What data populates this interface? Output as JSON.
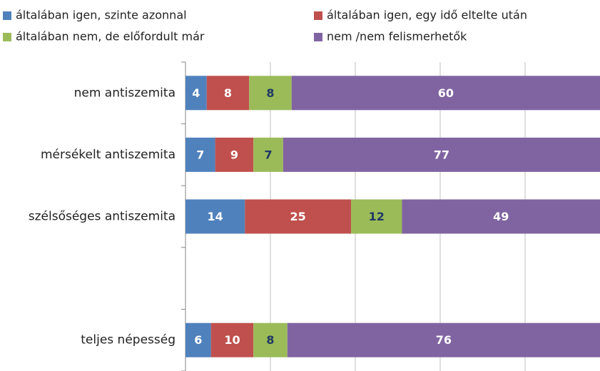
{
  "chart_data": {
    "type": "bar",
    "orientation": "horizontal",
    "stacked": "percent",
    "categories": [
      "nem antiszemita",
      "mérsékelt antiszemita",
      "szélsőséges antiszemita",
      null,
      "teljes népesség"
    ],
    "series": [
      {
        "name": "általában igen, szinte azonnal",
        "color": "#4f81bd",
        "label_color": "#ffffff",
        "values": [
          4,
          7,
          14,
          null,
          6
        ]
      },
      {
        "name": "általában igen, egy idő eltelte után",
        "color": "#c0504d",
        "label_color": "#ffffff",
        "values": [
          8,
          9,
          25,
          null,
          10
        ]
      },
      {
        "name": "általában nem, de előfordult már",
        "color": "#9bbb59",
        "label_color": "#1f3864",
        "values": [
          8,
          7,
          12,
          null,
          8
        ]
      },
      {
        "name": "nem /nem felismerhetők",
        "color": "#8064a2",
        "label_color": "#ffffff",
        "values": [
          60,
          77,
          49,
          null,
          76
        ]
      }
    ],
    "xlim": [
      0,
      100
    ],
    "xticks": [
      0,
      20,
      40,
      60,
      80,
      100
    ],
    "xtick_labels": false,
    "grid": true,
    "legend": "top"
  }
}
